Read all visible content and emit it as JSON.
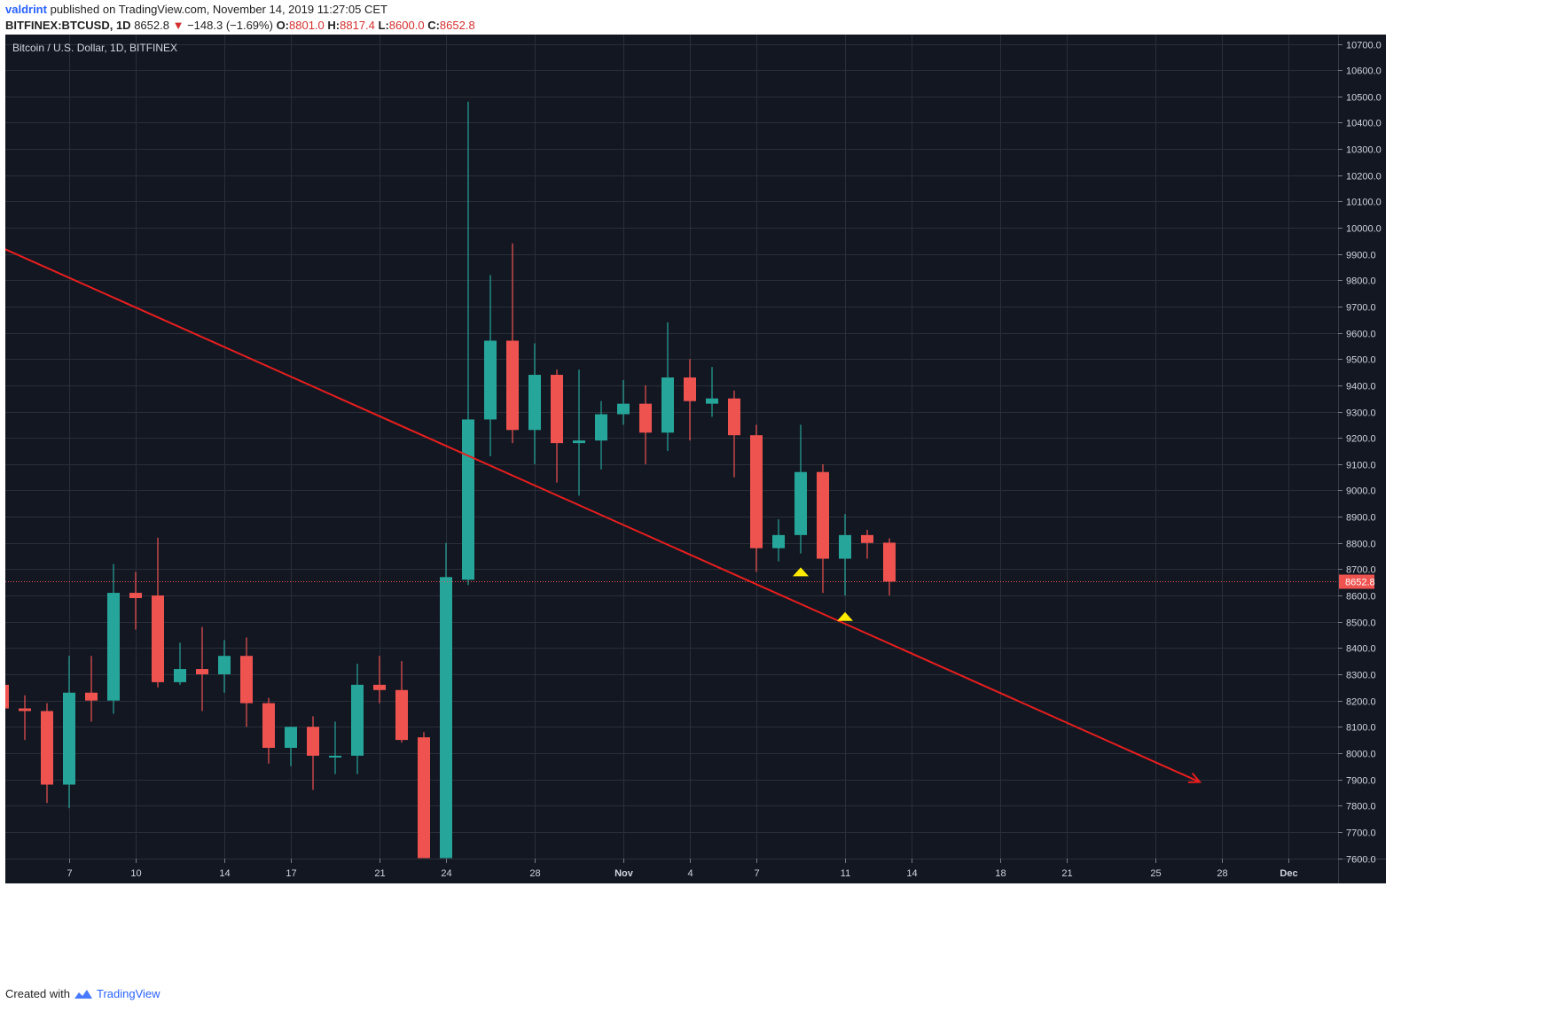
{
  "header": {
    "user": "valdrint",
    "published_text": "published on TradingView.com, November 14, 2019 11:27:05 CET",
    "symbol": "BITFINEX:BTCUSD, 1D",
    "last": "8652.8",
    "change": "−148.3 (−1.69%)",
    "o_label": "O:",
    "o": "8801.0",
    "h_label": "H:",
    "h": "8817.4",
    "l_label": "L:",
    "l": "8600.0",
    "c_label": "C:",
    "c": "8652.8"
  },
  "footer": {
    "created_with": "Created with",
    "brand": "TradingView"
  },
  "chart_data": {
    "type": "candlestick",
    "title": "Bitcoin / U.S. Dollar, 1D, BITFINEX",
    "ylim": [
      7600,
      10730
    ],
    "y_ticks": [
      7600,
      7700,
      7800,
      7900,
      8000,
      8100,
      8200,
      8300,
      8400,
      8500,
      8600,
      8700,
      8800,
      8900,
      9000,
      9100,
      9200,
      9300,
      9400,
      9500,
      9600,
      9700,
      9800,
      9900,
      10000,
      10100,
      10200,
      10300,
      10400,
      10500,
      10600,
      10700
    ],
    "x_tick_labels": [
      {
        "day": 7,
        "label": "7"
      },
      {
        "day": 10,
        "label": "10"
      },
      {
        "day": 14,
        "label": "14"
      },
      {
        "day": 17,
        "label": "17"
      },
      {
        "day": 21,
        "label": "21"
      },
      {
        "day": 24,
        "label": "24"
      },
      {
        "day": 28,
        "label": "28"
      },
      {
        "day": 32,
        "label": "Nov"
      },
      {
        "day": 35,
        "label": "4"
      },
      {
        "day": 38,
        "label": "7"
      },
      {
        "day": 42,
        "label": "11"
      },
      {
        "day": 45,
        "label": "14"
      },
      {
        "day": 49,
        "label": "18"
      },
      {
        "day": 52,
        "label": "21"
      },
      {
        "day": 56,
        "label": "25"
      },
      {
        "day": 59,
        "label": "28"
      },
      {
        "day": 62,
        "label": "Dec"
      }
    ],
    "candles": [
      {
        "day": 4,
        "o": 8260,
        "h": 8290,
        "l": 8160,
        "c": 8170
      },
      {
        "day": 5,
        "o": 8170,
        "h": 8220,
        "l": 8050,
        "c": 8160
      },
      {
        "day": 6,
        "o": 8160,
        "h": 8190,
        "l": 7810,
        "c": 7880
      },
      {
        "day": 7,
        "o": 7880,
        "h": 8370,
        "l": 7790,
        "c": 8230
      },
      {
        "day": 8,
        "o": 8230,
        "h": 8370,
        "l": 8120,
        "c": 8200
      },
      {
        "day": 9,
        "o": 8200,
        "h": 8720,
        "l": 8150,
        "c": 8610
      },
      {
        "day": 10,
        "o": 8610,
        "h": 8690,
        "l": 8470,
        "c": 8590
      },
      {
        "day": 11,
        "o": 8600,
        "h": 8820,
        "l": 8250,
        "c": 8270
      },
      {
        "day": 12,
        "o": 8270,
        "h": 8420,
        "l": 8260,
        "c": 8320
      },
      {
        "day": 13,
        "o": 8320,
        "h": 8480,
        "l": 8160,
        "c": 8300
      },
      {
        "day": 14,
        "o": 8300,
        "h": 8430,
        "l": 8230,
        "c": 8370
      },
      {
        "day": 15,
        "o": 8370,
        "h": 8440,
        "l": 8100,
        "c": 8190
      },
      {
        "day": 16,
        "o": 8190,
        "h": 8210,
        "l": 7960,
        "c": 8020
      },
      {
        "day": 17,
        "o": 8020,
        "h": 8100,
        "l": 7950,
        "c": 8100
      },
      {
        "day": 18,
        "o": 8100,
        "h": 8140,
        "l": 7860,
        "c": 7990
      },
      {
        "day": 19,
        "o": 7990,
        "h": 8120,
        "l": 7920,
        "c": 7990
      },
      {
        "day": 20,
        "o": 7990,
        "h": 8340,
        "l": 7920,
        "c": 8260
      },
      {
        "day": 21,
        "o": 8260,
        "h": 8370,
        "l": 8190,
        "c": 8240
      },
      {
        "day": 22,
        "o": 8240,
        "h": 8350,
        "l": 8040,
        "c": 8050
      },
      {
        "day": 23,
        "o": 8060,
        "h": 8080,
        "l": 7600,
        "c": 7600
      },
      {
        "day": 24,
        "o": 7600,
        "h": 8800,
        "l": 7600,
        "c": 8670
      },
      {
        "day": 25,
        "o": 8660,
        "h": 10480,
        "l": 8640,
        "c": 9270
      },
      {
        "day": 26,
        "o": 9270,
        "h": 9820,
        "l": 9130,
        "c": 9570
      },
      {
        "day": 27,
        "o": 9570,
        "h": 9940,
        "l": 9180,
        "c": 9230
      },
      {
        "day": 28,
        "o": 9230,
        "h": 9560,
        "l": 9100,
        "c": 9440
      },
      {
        "day": 29,
        "o": 9440,
        "h": 9460,
        "l": 9030,
        "c": 9180
      },
      {
        "day": 30,
        "o": 9180,
        "h": 9460,
        "l": 8980,
        "c": 9190
      },
      {
        "day": 31,
        "o": 9190,
        "h": 9340,
        "l": 9080,
        "c": 9290
      },
      {
        "day": 32,
        "o": 9290,
        "h": 9420,
        "l": 9250,
        "c": 9330
      },
      {
        "day": 33,
        "o": 9330,
        "h": 9400,
        "l": 9100,
        "c": 9220
      },
      {
        "day": 34,
        "o": 9220,
        "h": 9640,
        "l": 9150,
        "c": 9430
      },
      {
        "day": 35,
        "o": 9430,
        "h": 9500,
        "l": 9190,
        "c": 9340
      },
      {
        "day": 36,
        "o": 9330,
        "h": 9470,
        "l": 9280,
        "c": 9350
      },
      {
        "day": 37,
        "o": 9350,
        "h": 9380,
        "l": 9050,
        "c": 9210
      },
      {
        "day": 38,
        "o": 9210,
        "h": 9250,
        "l": 8690,
        "c": 8780
      },
      {
        "day": 39,
        "o": 8780,
        "h": 8890,
        "l": 8730,
        "c": 8830
      },
      {
        "day": 40,
        "o": 8830,
        "h": 9250,
        "l": 8760,
        "c": 9070
      },
      {
        "day": 41,
        "o": 9070,
        "h": 9100,
        "l": 8610,
        "c": 8740
      },
      {
        "day": 42,
        "o": 8740,
        "h": 8910,
        "l": 8600,
        "c": 8830
      },
      {
        "day": 43,
        "o": 8830,
        "h": 8850,
        "l": 8740,
        "c": 8800
      },
      {
        "day": 44,
        "o": 8801.0,
        "h": 8817.4,
        "l": 8600.0,
        "c": 8652.8
      }
    ],
    "price_line": {
      "value": 8652.8,
      "label": "8652.8"
    },
    "trendline": {
      "start": {
        "day": 3.0,
        "price": 9960
      },
      "end": {
        "day": 58.0,
        "price": 7890
      }
    },
    "markers": [
      {
        "day": 40,
        "price": 8690,
        "shape": "triangle-up",
        "color": "#ffeb00"
      },
      {
        "day": 42,
        "price": 8520,
        "shape": "triangle-up",
        "color": "#ffeb00"
      }
    ],
    "colors": {
      "background": "#131722",
      "grid": "#2a2e39",
      "up": "#26a69a",
      "down": "#ef5350",
      "trendline": "#e81e1e",
      "text": "#d1d4dc"
    }
  }
}
